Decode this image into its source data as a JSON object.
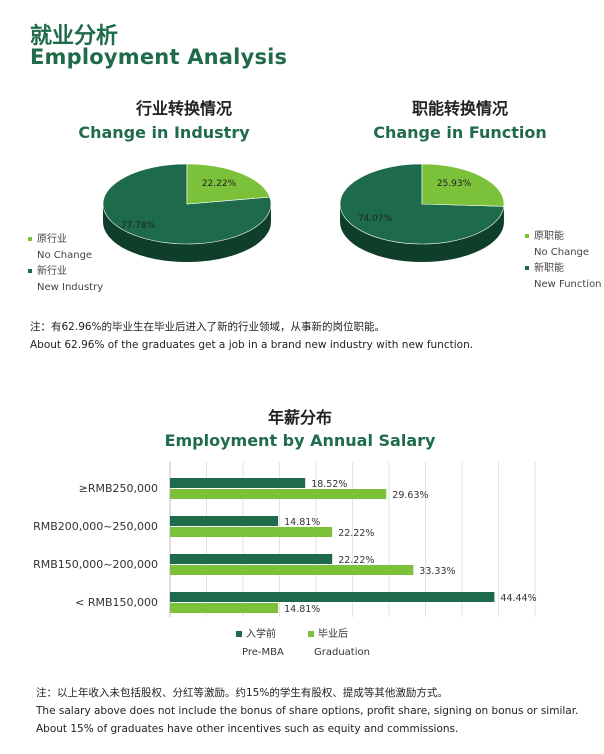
{
  "page": {
    "title_cn": "就业分析",
    "title_en": "Employment Analysis"
  },
  "colors": {
    "dark_green": "#1e6b4b",
    "light_green": "#7cc13a",
    "heading_green": "#1f6b4a"
  },
  "chart_data": [
    {
      "type": "pie",
      "title": "行业转换情况",
      "subtitle": "Change in Industry",
      "slices": [
        {
          "label_cn": "原行业",
          "label_en": "No Change",
          "value": 22.22,
          "value_label": "22.22%"
        },
        {
          "label_cn": "新行业",
          "label_en": "New Industry",
          "value": 77.78,
          "value_label": "77.78%"
        }
      ],
      "legend_position": "bottom-left"
    },
    {
      "type": "pie",
      "title": "职能转换情况",
      "subtitle": "Change in Function",
      "slices": [
        {
          "label_cn": "原职能",
          "label_en": "No Change",
          "value": 25.93,
          "value_label": "25.93%"
        },
        {
          "label_cn": "新职能",
          "label_en": "New Function",
          "value": 74.07,
          "value_label": "74.07%"
        }
      ],
      "legend_position": "right"
    },
    {
      "type": "bar",
      "orientation": "horizontal",
      "title": "年薪分布",
      "subtitle": "Employment by Annual Salary",
      "categories": [
        "≥RMB250,000",
        "RMB200,000~250,000",
        "RMB150,000~200,000",
        "< RMB150,000"
      ],
      "series": [
        {
          "name_cn": "入学前",
          "name": "Pre-MBA",
          "values": [
            18.52,
            14.81,
            22.22,
            44.44
          ],
          "value_labels": [
            "18.52%",
            "14.81%",
            "22.22%",
            "44.44%"
          ]
        },
        {
          "name_cn": "毕业后",
          "name": "Graduation",
          "values": [
            29.63,
            22.22,
            33.33,
            14.81
          ],
          "value_labels": [
            "29.63%",
            "22.22%",
            "33.33%",
            "14.81%"
          ]
        }
      ],
      "xlim": [
        0,
        50
      ],
      "grid": true,
      "legend_position": "bottom"
    }
  ],
  "notes": {
    "pie_note_cn": "注：有62.96%的毕业生在毕业后进入了新的行业领域，从事新的岗位职能。",
    "pie_note_en": "About 62.96% of the graduates get a job in a brand new industry with new function.",
    "salary_note_cn": "注：以上年收入未包括股权、分红等激励。约15%的学生有股权、提成等其他激励方式。",
    "salary_note_en_1": "The salary above does not include the bonus of share options, profit share, signing on bonus or similar.",
    "salary_note_en_2": "About 15% of graduates have other incentives such as equity and commissions."
  }
}
